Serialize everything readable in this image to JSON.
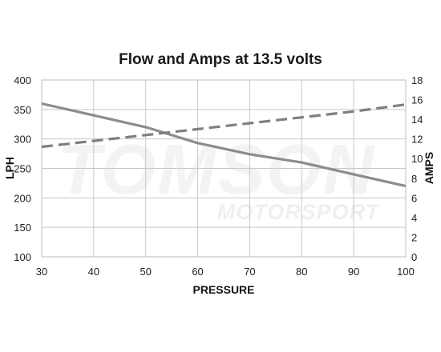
{
  "chart_data": {
    "type": "line",
    "title": "Flow and Amps at 13.5 volts",
    "xlabel": "PRESSURE",
    "ylabel": "LPH",
    "y2label": "AMPS",
    "x": [
      30,
      40,
      50,
      60,
      70,
      80,
      90,
      100
    ],
    "xlim": [
      30,
      100
    ],
    "ylim": [
      100,
      400
    ],
    "y2lim": [
      0,
      18
    ],
    "xticks": [
      "30",
      "40",
      "50",
      "60",
      "70",
      "80",
      "90",
      "100"
    ],
    "yticks": [
      "100",
      "150",
      "200",
      "250",
      "300",
      "350",
      "400"
    ],
    "y2ticks": [
      "0",
      "2",
      "4",
      "6",
      "8",
      "10",
      "12",
      "14",
      "16",
      "18"
    ],
    "grid": true,
    "series": [
      {
        "axis": "left",
        "style": "solid",
        "color": "#8c8c8c",
        "values": [
          360,
          340,
          320,
          293,
          274,
          260,
          240,
          220
        ]
      },
      {
        "axis": "right",
        "style": "dashed",
        "color": "#7f7f7f",
        "values": [
          11.2,
          11.8,
          12.4,
          13.0,
          13.6,
          14.2,
          14.8,
          15.5
        ]
      }
    ]
  },
  "watermark": {
    "brand": "TOMSON",
    "sub": "MOTORSPORT"
  }
}
